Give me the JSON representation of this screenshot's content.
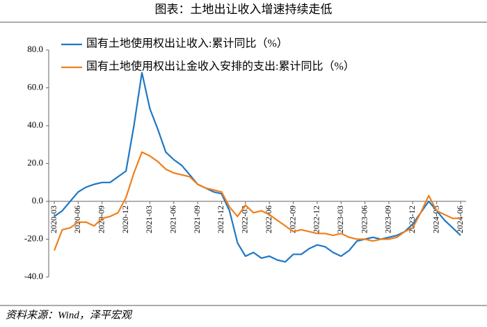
{
  "chart_data": {
    "type": "line",
    "title": "图表：土地出让收入增速持续走低",
    "source": "资料来源：Wind，泽平宏观",
    "categories": [
      "2020-03",
      null,
      null,
      "2020-06",
      null,
      null,
      "2020-09",
      null,
      null,
      "2020-12",
      null,
      null,
      "2021-03",
      null,
      null,
      "2021-06",
      null,
      null,
      "2021-09",
      null,
      null,
      "2021-12",
      null,
      null,
      "2022-03",
      null,
      null,
      "2022-06",
      null,
      null,
      "2022-09",
      null,
      null,
      "2022-12",
      null,
      null,
      "2023-03",
      null,
      null,
      "2023-06",
      null,
      null,
      "2023-09",
      null,
      null,
      "2023-12",
      null,
      null,
      "2024-03",
      null,
      null,
      "2024-06"
    ],
    "series": [
      {
        "name": "国有土地使用权出让收入:累计同比（%）",
        "color": "#1f77c4",
        "values": [
          -8,
          -5,
          0,
          5,
          7.5,
          9,
          10,
          10,
          13,
          16,
          40,
          68,
          49,
          38,
          26,
          22,
          19,
          14,
          9,
          7,
          5,
          4,
          -5,
          -22,
          -29,
          -27,
          -30,
          -29,
          -31,
          -32,
          -28,
          -28,
          -25,
          -23,
          -24,
          -27,
          -29,
          -26,
          -21,
          -20,
          -19,
          -20,
          -19,
          -18,
          -16,
          -12,
          -6,
          0,
          -5,
          -10,
          -14,
          -18
        ]
      },
      {
        "name": "国有土地使用权出让金收入安排的支出:累计同比（%）",
        "color": "#f07f1a",
        "values": [
          -26,
          -15,
          -14,
          -11,
          -11,
          -13,
          -9,
          -8,
          -6,
          2,
          15,
          26,
          24,
          21,
          17,
          15,
          14,
          13,
          9,
          7,
          6,
          5,
          -3,
          -8,
          -2,
          -6,
          -5,
          -7,
          -10,
          -13,
          -16,
          -15,
          -16,
          -17,
          -17,
          -18,
          -17,
          -19,
          -20,
          -20,
          -21,
          -20,
          -20,
          -19,
          -16,
          -14,
          -6,
          3,
          -5,
          -7,
          -9,
          -9
        ]
      }
    ],
    "ylim": [
      -40,
      80
    ],
    "yticks": [
      {
        "value": -40,
        "label": "-40.0"
      },
      {
        "value": -20,
        "label": "-20.0"
      },
      {
        "value": 0,
        "label": "0.0"
      },
      {
        "value": 20,
        "label": "20.0"
      },
      {
        "value": 40,
        "label": "40.0"
      },
      {
        "value": 60,
        "label": "60.0"
      },
      {
        "value": 80,
        "label": "80.0"
      }
    ],
    "legend": "upper left"
  }
}
